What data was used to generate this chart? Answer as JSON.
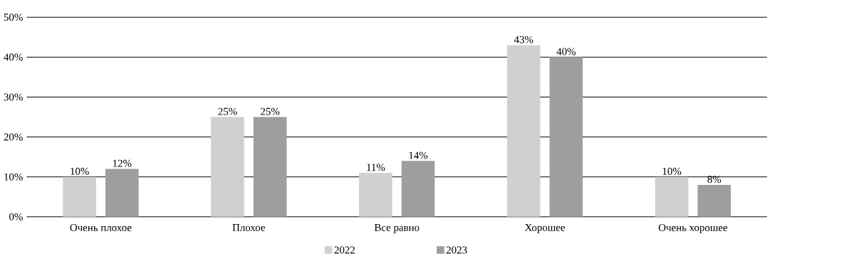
{
  "chart_data": {
    "type": "bar",
    "categories": [
      "Очень плохое",
      "Плохое",
      "Все равно",
      "Хорошее",
      "Очень хорошее"
    ],
    "series": [
      {
        "name": "2022",
        "color": "#d0d0d0",
        "values": [
          10,
          25,
          11,
          43,
          10
        ],
        "value_labels": [
          "10%",
          "25%",
          "11%",
          "43%",
          "10%"
        ]
      },
      {
        "name": "2023",
        "color": "#9e9e9e",
        "values": [
          12,
          25,
          14,
          40,
          8
        ],
        "value_labels": [
          "12%",
          "25%",
          "14%",
          "40%",
          "8%"
        ]
      }
    ],
    "ylim": [
      0,
      50
    ],
    "yticks": [
      {
        "value": 0,
        "label": "0%"
      },
      {
        "value": 10,
        "label": "10%"
      },
      {
        "value": 20,
        "label": "20%"
      },
      {
        "value": 30,
        "label": "30%"
      },
      {
        "value": 40,
        "label": "40%"
      },
      {
        "value": 50,
        "label": "50%"
      }
    ],
    "grid": "y",
    "legend": "bottom"
  }
}
